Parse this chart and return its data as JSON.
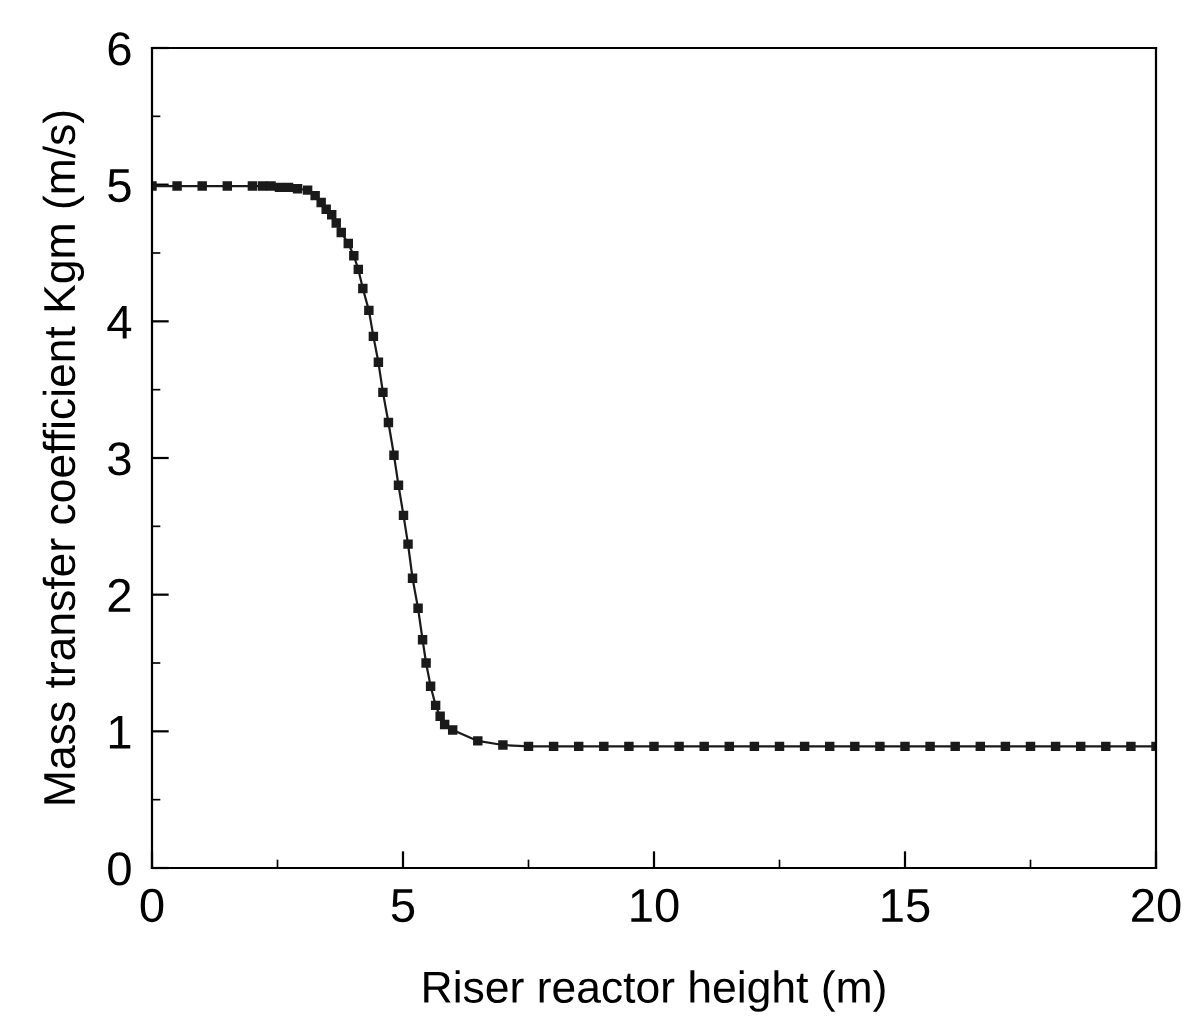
{
  "chart_data": {
    "type": "line",
    "xlabel": "Riser reactor height (m)",
    "ylabel": "Mass transfer coefficient Kgm (m/s)",
    "xlim": [
      0,
      20
    ],
    "xticks": [
      0,
      5,
      10,
      15,
      20
    ],
    "ylim": [
      0,
      6
    ],
    "yticks": [
      0,
      1,
      2,
      3,
      4,
      5,
      6
    ],
    "marker": "square",
    "line_style": "solid",
    "grid": false,
    "legend": false,
    "series": [
      {
        "color": "#1a1a1a",
        "x": [
          0,
          0.5,
          1.0,
          1.5,
          2.0,
          2.2,
          2.37,
          2.54,
          2.72,
          2.9,
          3.1,
          3.25,
          3.37,
          3.47,
          3.58,
          3.67,
          3.77,
          3.91,
          4.02,
          4.11,
          4.2,
          4.32,
          4.41,
          4.51,
          4.6,
          4.71,
          4.82,
          4.91,
          5.01,
          5.1,
          5.19,
          5.3,
          5.39,
          5.46,
          5.55,
          5.65,
          5.74,
          5.83,
          5.99,
          6.49,
          6.99,
          7.5,
          8.0,
          8.5,
          9.0,
          9.5,
          10.0,
          10.5,
          11.0,
          11.5,
          12.0,
          12.5,
          13.0,
          13.5,
          14.0,
          14.5,
          15.0,
          15.5,
          16.0,
          16.5,
          17.0,
          17.5,
          18.0,
          18.5,
          19.0,
          19.5,
          20.0
        ],
        "values": [
          4.99,
          4.99,
          4.99,
          4.99,
          4.99,
          4.99,
          4.99,
          4.98,
          4.98,
          4.97,
          4.96,
          4.92,
          4.87,
          4.82,
          4.78,
          4.72,
          4.65,
          4.57,
          4.48,
          4.38,
          4.24,
          4.08,
          3.89,
          3.7,
          3.48,
          3.26,
          3.02,
          2.8,
          2.58,
          2.37,
          2.12,
          1.9,
          1.67,
          1.5,
          1.33,
          1.19,
          1.11,
          1.05,
          1.01,
          0.93,
          0.9,
          0.89,
          0.89,
          0.89,
          0.89,
          0.89,
          0.89,
          0.89,
          0.89,
          0.89,
          0.89,
          0.89,
          0.89,
          0.89,
          0.89,
          0.89,
          0.89,
          0.89,
          0.89,
          0.89,
          0.89,
          0.89,
          0.89,
          0.89,
          0.89,
          0.89,
          0.89
        ]
      }
    ]
  }
}
